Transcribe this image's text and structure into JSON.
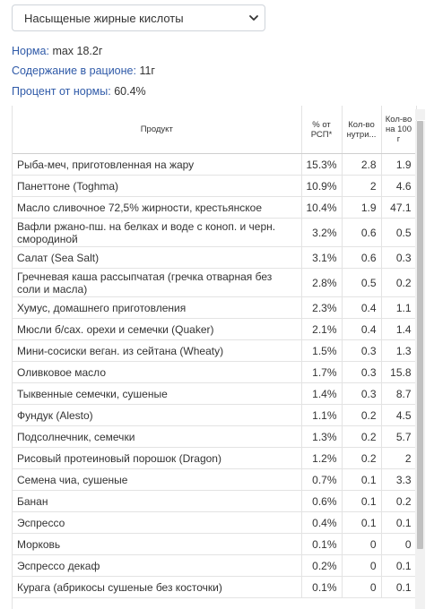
{
  "nutrient_select": {
    "selected": "Насыщеные жирные кислоты"
  },
  "info": {
    "norm_label": "Норма:",
    "norm_value": "max 18.2г",
    "content_label": "Содержание в рационе:",
    "content_value": "11г",
    "percent_label": "Процент от нормы:",
    "percent_value": "60.4%"
  },
  "table": {
    "headers": {
      "product": "Продукт",
      "percent_rsp": "% от РСП*",
      "amount": "Кол-во нутри...",
      "per100": "Кол-во на 100 г"
    },
    "rows": [
      {
        "name": "Рыба-меч, приготовленная на жару",
        "pct": "15.3%",
        "amt": "2.8",
        "per100": "1.9"
      },
      {
        "name": "Панеттоне (Toghma)",
        "pct": "10.9%",
        "amt": "2",
        "per100": "4.6"
      },
      {
        "name": "Масло сливочное 72,5% жирности, крестьянское",
        "pct": "10.4%",
        "amt": "1.9",
        "per100": "47.1"
      },
      {
        "name": "Вафли ржано-пш. на белках и воде с коноп. и черн. смородиной",
        "pct": "3.2%",
        "amt": "0.6",
        "per100": "0.5"
      },
      {
        "name": "Салат (Sea Salt)",
        "pct": "3.1%",
        "amt": "0.6",
        "per100": "0.3"
      },
      {
        "name": "Гречневая каша рассыпчатая (гречка отварная без соли и масла)",
        "pct": "2.8%",
        "amt": "0.5",
        "per100": "0.2"
      },
      {
        "name": "Хумус, домашнего приготовления",
        "pct": "2.3%",
        "amt": "0.4",
        "per100": "1.1"
      },
      {
        "name": "Мюсли б/сах. орехи и семечки (Quaker)",
        "pct": "2.1%",
        "amt": "0.4",
        "per100": "1.4"
      },
      {
        "name": "Мини-сосиски веган. из сейтана (Wheaty)",
        "pct": "1.5%",
        "amt": "0.3",
        "per100": "1.3"
      },
      {
        "name": "Оливковое масло",
        "pct": "1.7%",
        "amt": "0.3",
        "per100": "15.8"
      },
      {
        "name": "Тыквенные семечки, сушеные",
        "pct": "1.4%",
        "amt": "0.3",
        "per100": "8.7"
      },
      {
        "name": "Фундук (Alesto)",
        "pct": "1.1%",
        "amt": "0.2",
        "per100": "4.5"
      },
      {
        "name": "Подсолнечник, семечки",
        "pct": "1.3%",
        "amt": "0.2",
        "per100": "5.7"
      },
      {
        "name": "Рисовый протеиновый порошок (Dragon)",
        "pct": "1.2%",
        "amt": "0.2",
        "per100": "2"
      },
      {
        "name": "Семена чиа, сушеные",
        "pct": "0.7%",
        "amt": "0.1",
        "per100": "3.3"
      },
      {
        "name": "Банан",
        "pct": "0.6%",
        "amt": "0.1",
        "per100": "0.2"
      },
      {
        "name": "Эспрессо",
        "pct": "0.4%",
        "amt": "0.1",
        "per100": "0.1"
      },
      {
        "name": "Морковь",
        "pct": "0.1%",
        "amt": "0",
        "per100": "0"
      },
      {
        "name": "Эспрессо декаф",
        "pct": "0.2%",
        "amt": "0",
        "per100": "0.1"
      },
      {
        "name": "Курага (абрикосы сушеные без косточки)",
        "pct": "0.1%",
        "amt": "0",
        "per100": "0.1"
      }
    ]
  }
}
